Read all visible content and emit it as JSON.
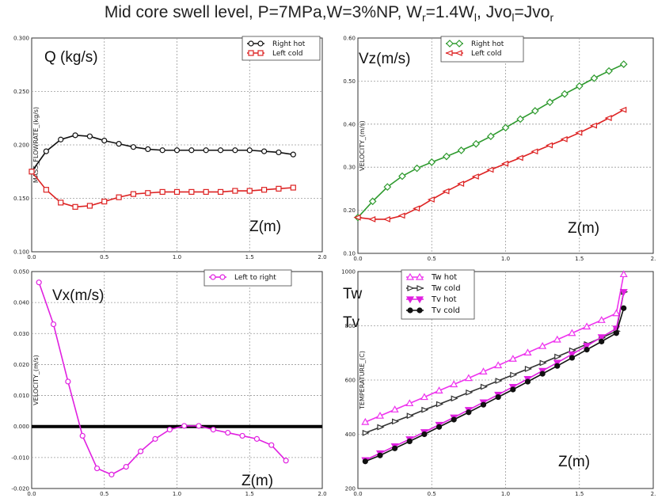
{
  "title_parts": {
    "a": "Mid core swell level, P=7MPa,W=3%NP, W",
    "sub_r": "r",
    "b": "=1.4W",
    "sub_l": "l",
    "c": ", Jvo",
    "sub_l2": "l",
    "d": "=Jvo",
    "sub_r2": "r"
  },
  "chart_data": [
    {
      "type": "line",
      "panel_label": "Q (kg/s)",
      "xlabel_overlay": "Z(m)",
      "ylabel": "MASS_FLOWRATE_(kg/s)",
      "xlim": [
        0,
        2
      ],
      "ylim": [
        0.1,
        0.3
      ],
      "xticks": [
        "0.0",
        "0.5",
        "1.0",
        "1.5",
        "2.0"
      ],
      "yticks": [
        "0.100",
        "0.150",
        "0.200",
        "0.250",
        "0.300"
      ],
      "grid": true,
      "legend_position": "top-right",
      "series": [
        {
          "name": "Right hot",
          "color": "#111111",
          "marker": "circle-open",
          "x": [
            0.0,
            0.1,
            0.2,
            0.3,
            0.4,
            0.5,
            0.6,
            0.7,
            0.8,
            0.9,
            1.0,
            1.1,
            1.2,
            1.3,
            1.4,
            1.5,
            1.6,
            1.7,
            1.8
          ],
          "y": [
            0.175,
            0.194,
            0.205,
            0.209,
            0.208,
            0.204,
            0.201,
            0.198,
            0.196,
            0.195,
            0.195,
            0.195,
            0.195,
            0.195,
            0.195,
            0.195,
            0.194,
            0.193,
            0.191
          ]
        },
        {
          "name": "Left cold",
          "color": "#dd2222",
          "marker": "square-open",
          "x": [
            0.0,
            0.1,
            0.2,
            0.3,
            0.4,
            0.5,
            0.6,
            0.7,
            0.8,
            0.9,
            1.0,
            1.1,
            1.2,
            1.3,
            1.4,
            1.5,
            1.6,
            1.7,
            1.8
          ],
          "y": [
            0.175,
            0.158,
            0.146,
            0.142,
            0.143,
            0.147,
            0.151,
            0.154,
            0.155,
            0.156,
            0.156,
            0.156,
            0.156,
            0.156,
            0.157,
            0.157,
            0.158,
            0.159,
            0.16
          ]
        }
      ]
    },
    {
      "type": "line",
      "panel_label": "Vz(m/s)",
      "xlabel_overlay": "Z(m)",
      "ylabel": "VELOCITY_(m/s)",
      "xlim": [
        0,
        2
      ],
      "ylim": [
        0.1,
        0.7
      ],
      "xticks": [
        "0.0",
        "0.5",
        "1.0",
        "1.5",
        "2."
      ],
      "yticks": [
        "0.10",
        "0.20",
        "0.30",
        "0.40",
        "0.50",
        "0.60"
      ],
      "grid": true,
      "legend_position": "top-left",
      "series": [
        {
          "name": "Right hot",
          "color": "#2e9a2e",
          "marker": "diamond-open",
          "x": [
            0.0,
            0.1,
            0.2,
            0.3,
            0.4,
            0.5,
            0.6,
            0.7,
            0.8,
            0.9,
            1.0,
            1.1,
            1.2,
            1.3,
            1.4,
            1.5,
            1.6,
            1.7,
            1.8
          ],
          "y": [
            0.2,
            0.245,
            0.285,
            0.315,
            0.337,
            0.354,
            0.37,
            0.387,
            0.405,
            0.426,
            0.45,
            0.474,
            0.497,
            0.521,
            0.544,
            0.566,
            0.588,
            0.608,
            0.627
          ]
        },
        {
          "name": "Left cold",
          "color": "#dd2222",
          "marker": "triangle-left-open",
          "x": [
            0.0,
            0.1,
            0.2,
            0.3,
            0.4,
            0.5,
            0.6,
            0.7,
            0.8,
            0.9,
            1.0,
            1.1,
            1.2,
            1.3,
            1.4,
            1.5,
            1.6,
            1.7,
            1.8
          ],
          "y": [
            0.2,
            0.195,
            0.195,
            0.205,
            0.225,
            0.25,
            0.273,
            0.294,
            0.314,
            0.333,
            0.35,
            0.366,
            0.384,
            0.401,
            0.418,
            0.436,
            0.456,
            0.477,
            0.5
          ]
        }
      ]
    },
    {
      "type": "line",
      "panel_label": "Vx(m/s)",
      "xlabel_overlay": "Z(m)",
      "ylabel": "VELOCITY_(m/s)",
      "xlim": [
        0,
        2
      ],
      "ylim": [
        -0.02,
        0.05
      ],
      "xticks": [
        "0.0",
        "0.5",
        "1.0",
        "1.5",
        "2.0"
      ],
      "yticks": [
        "-0.020",
        "-0.010",
        "0.000",
        "0.010",
        "0.020",
        "0.030",
        "0.040",
        "0.050"
      ],
      "grid": true,
      "legend_position": "top-right",
      "zero_line": true,
      "series": [
        {
          "name": "Left to right",
          "color": "#e020e0",
          "marker": "circle-open",
          "x": [
            0.05,
            0.15,
            0.25,
            0.35,
            0.45,
            0.55,
            0.65,
            0.75,
            0.85,
            0.95,
            1.05,
            1.15,
            1.25,
            1.35,
            1.45,
            1.55,
            1.65,
            1.75
          ],
          "y": [
            0.0465,
            0.033,
            0.0145,
            -0.003,
            -0.0135,
            -0.0155,
            -0.013,
            -0.008,
            -0.004,
            -0.001,
            0.0002,
            0.0002,
            -0.001,
            -0.002,
            -0.003,
            -0.004,
            -0.006,
            -0.011
          ]
        }
      ]
    },
    {
      "type": "line",
      "panel_label_1": "Tw",
      "panel_label_2": "Tv",
      "xlabel_overlay": "Z(m)",
      "ylabel": "TEMPERATURE_(C)",
      "xlim": [
        0,
        2
      ],
      "ylim": [
        200,
        1000
      ],
      "xticks": [
        "0.0",
        "0.5",
        "1.0",
        "1.5",
        "2."
      ],
      "yticks": [
        "200",
        "400",
        "600",
        "800",
        "1000"
      ],
      "grid": true,
      "legend_position": "top-left",
      "series": [
        {
          "name": "Tw hot",
          "color": "#ee33ee",
          "marker": "triangle-up-open",
          "x": [
            0.05,
            0.15,
            0.25,
            0.35,
            0.45,
            0.55,
            0.65,
            0.75,
            0.85,
            0.95,
            1.05,
            1.15,
            1.25,
            1.35,
            1.45,
            1.55,
            1.65,
            1.75,
            1.8
          ],
          "y": [
            445,
            468,
            491,
            514,
            537,
            561,
            584,
            607,
            631,
            654,
            678,
            701,
            725,
            749,
            773,
            797,
            821,
            846,
            990
          ]
        },
        {
          "name": "Tw cold",
          "color": "#333333",
          "marker": "triangle-right-open",
          "x": [
            0.05,
            0.15,
            0.25,
            0.35,
            0.45,
            0.55,
            0.65,
            0.75,
            0.85,
            0.95,
            1.05,
            1.15,
            1.25,
            1.35,
            1.45,
            1.55,
            1.65,
            1.75,
            1.8
          ],
          "y": [
            405,
            426,
            447,
            468,
            490,
            511,
            532,
            554,
            575,
            597,
            619,
            641,
            663,
            686,
            709,
            732,
            756,
            780,
            925
          ]
        },
        {
          "name": "Tv hot",
          "color": "#e020e0",
          "marker": "triangle-down-filled",
          "x": [
            0.05,
            0.15,
            0.25,
            0.35,
            0.45,
            0.55,
            0.65,
            0.75,
            0.85,
            0.95,
            1.05,
            1.15,
            1.25,
            1.35,
            1.45,
            1.55,
            1.65,
            1.75,
            1.8
          ],
          "y": [
            305,
            330,
            356,
            382,
            408,
            435,
            462,
            490,
            518,
            546,
            575,
            604,
            634,
            664,
            695,
            726,
            758,
            790,
            925
          ]
        },
        {
          "name": "Tv cold",
          "color": "#111111",
          "marker": "circle-filled",
          "x": [
            0.05,
            0.15,
            0.25,
            0.35,
            0.45,
            0.55,
            0.65,
            0.75,
            0.85,
            0.95,
            1.05,
            1.15,
            1.25,
            1.35,
            1.45,
            1.55,
            1.65,
            1.75,
            1.8
          ],
          "y": [
            300,
            322,
            348,
            374,
            400,
            427,
            454,
            481,
            509,
            537,
            565,
            594,
            623,
            652,
            682,
            712,
            742,
            773,
            865
          ]
        }
      ]
    }
  ]
}
